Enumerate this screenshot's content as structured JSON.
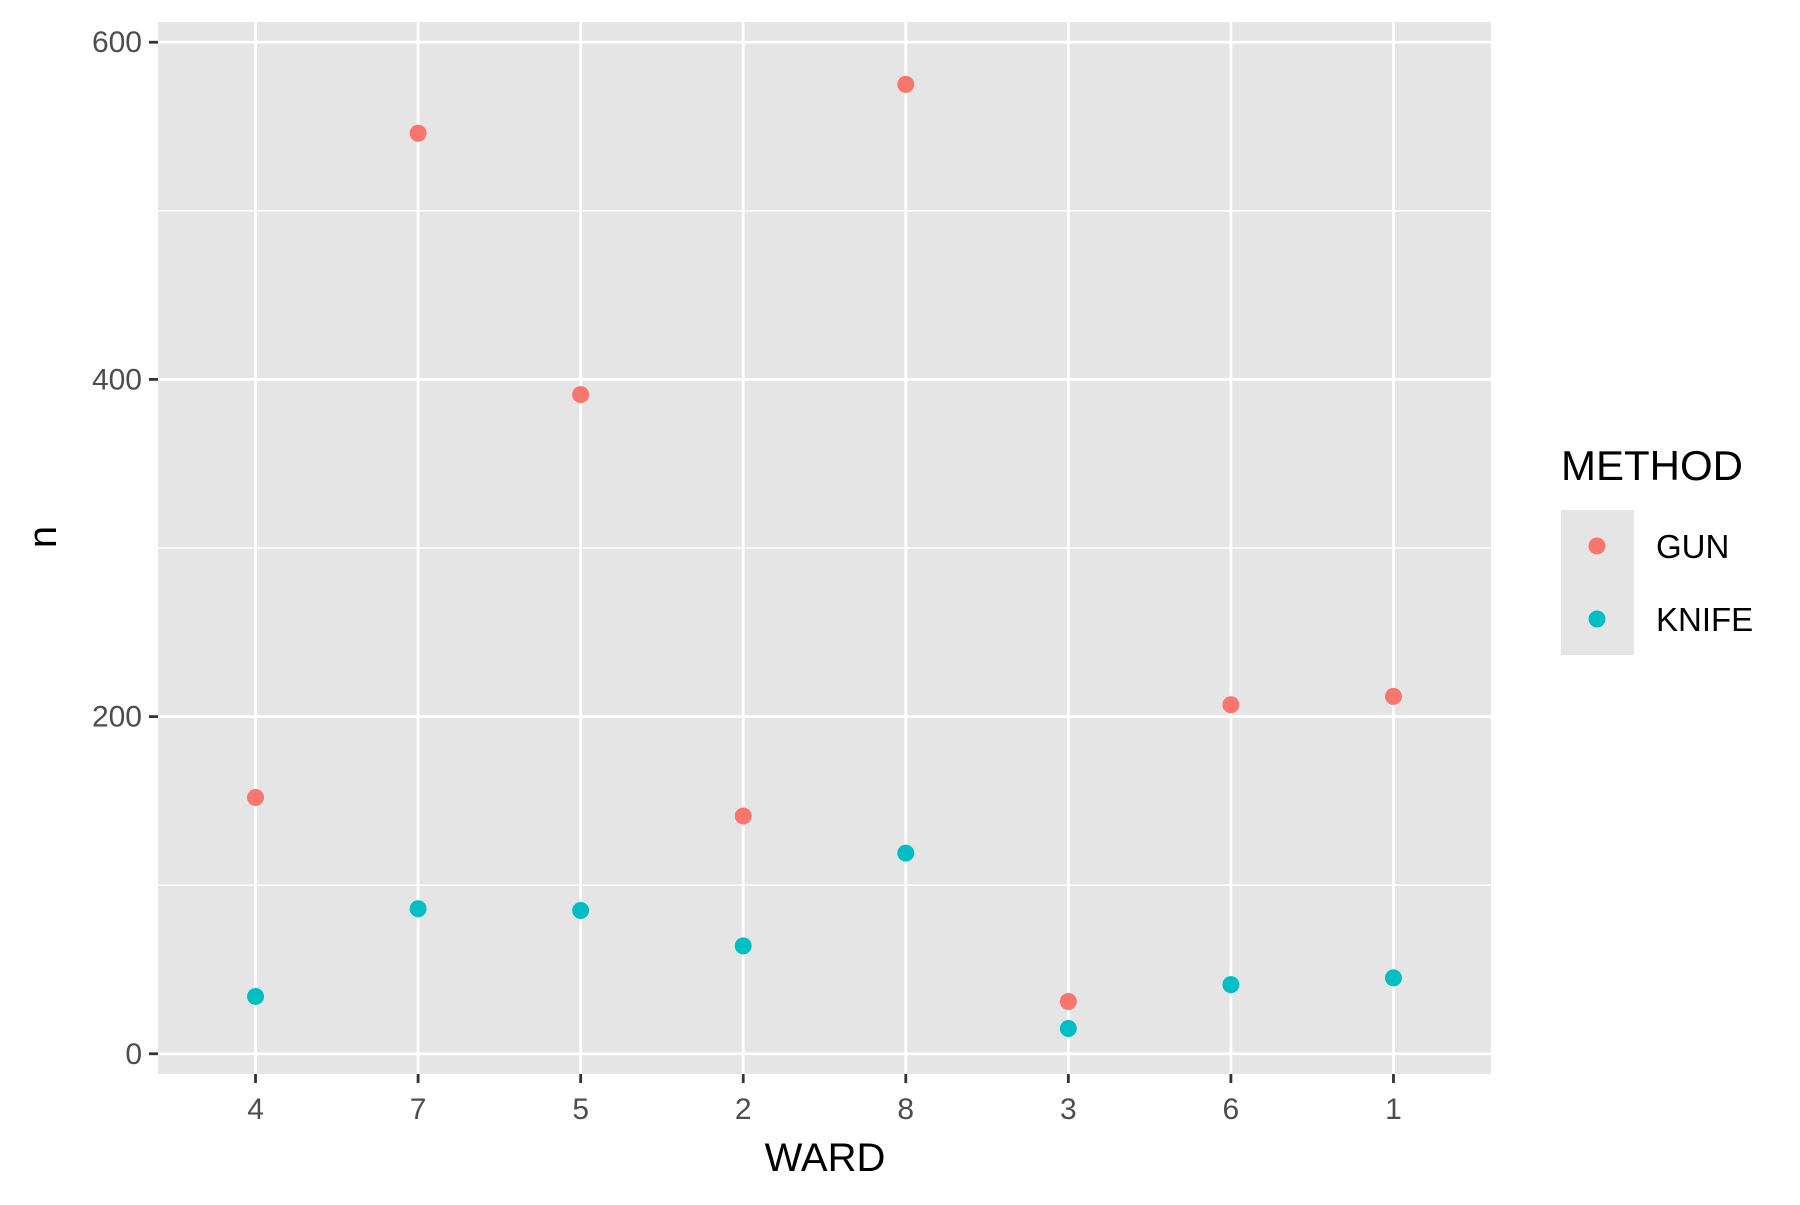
{
  "chart_data": {
    "type": "scatter",
    "title": "",
    "xlabel": "WARD",
    "ylabel": "n",
    "categories": [
      "4",
      "7",
      "5",
      "2",
      "8",
      "3",
      "6",
      "1"
    ],
    "ylim": [
      -12,
      612
    ],
    "yticks": [
      0,
      200,
      400,
      600
    ],
    "yticks_minor": [
      100,
      300,
      500
    ],
    "grid": true,
    "legend": {
      "title": "METHOD",
      "position": "right"
    },
    "series": [
      {
        "name": "GUN",
        "color": "#F8766D",
        "values": [
          152,
          546,
          391,
          141,
          575,
          31,
          207,
          212
        ]
      },
      {
        "name": "KNIFE",
        "color": "#00BFC4",
        "values": [
          34,
          86,
          85,
          64,
          119,
          15,
          41,
          45
        ]
      }
    ],
    "panel_background": "#E5E5E5",
    "grid_color": "#FFFFFF"
  }
}
